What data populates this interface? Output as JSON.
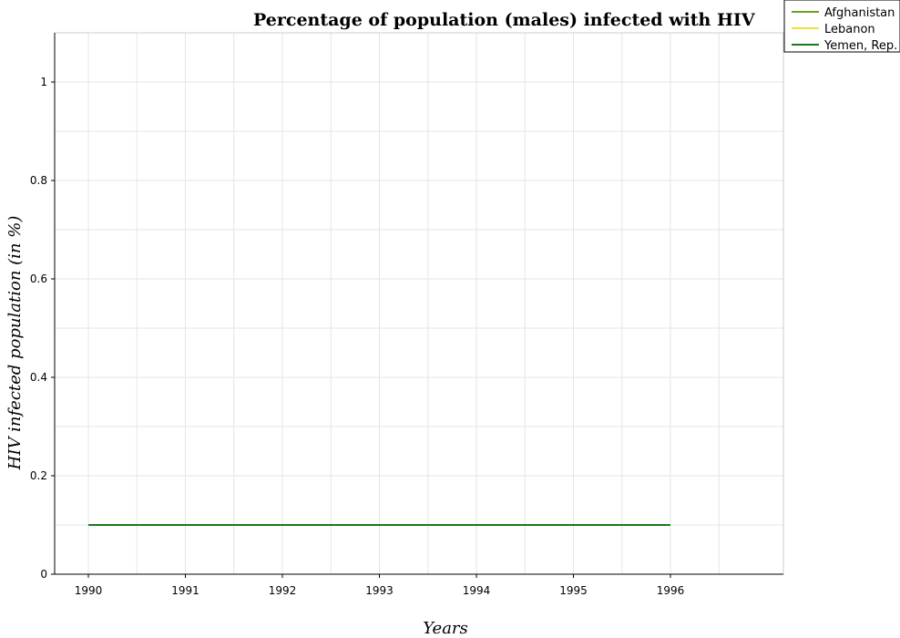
{
  "chart_data": {
    "type": "line",
    "title": "Percentage of population (males) infected with HIV",
    "xlabel": "Years",
    "ylabel": "HIV infected population (in %)",
    "x": [
      "1990",
      "1991",
      "1992",
      "1993",
      "1994",
      "1995",
      "1996"
    ],
    "ylim": [
      0,
      1.1
    ],
    "yticks": [
      "0",
      "0.2",
      "0.4",
      "0.6",
      "0.8",
      "1"
    ],
    "grid": true,
    "legend_position": "top-right",
    "series": [
      {
        "name": "Afghanistan",
        "color": "#6aa121",
        "values": [
          0.1,
          0.1,
          0.1,
          0.1,
          0.1,
          0.1,
          0.1
        ]
      },
      {
        "name": "Lebanon",
        "color": "#f0e23c",
        "values": [
          0.1,
          0.1,
          0.1,
          0.1,
          0.1,
          0.1,
          0.1
        ]
      },
      {
        "name": "Yemen, Rep.",
        "color": "#1a7a1a",
        "values": [
          0.1,
          0.1,
          0.1,
          0.1,
          0.1,
          0.1,
          0.1
        ]
      }
    ]
  }
}
